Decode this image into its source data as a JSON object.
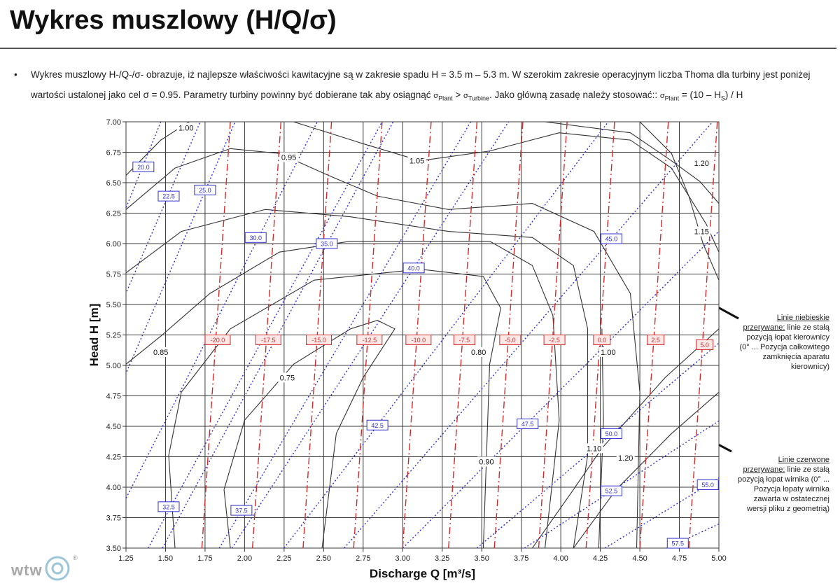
{
  "header": {
    "title": "Wykres muszlowy (H/Q/σ)",
    "bullet": [
      {
        "text": "Wykres muszlowy H-/Q-/σ- obrazuje, iż najlepsze właściwości kawitacyjne są w zakresie spadu H = 3.5 m – 5.3 m. W szerokim zakresie operacyjnym liczba Thoma dla turbiny jest poniżej wartości ustalonej jako cel σ = 0.95. Parametry turbiny powinny być dobierane tak aby osiągnąć "
      },
      {
        "text": "σ",
        "small": true
      },
      {
        "text": "Plant",
        "sub": true
      },
      {
        "text": " > "
      },
      {
        "text": "σ",
        "small": true
      },
      {
        "text": "Turbine",
        "sub": true
      },
      {
        "text": ". Jako główną zasadę należy stosować:: "
      },
      {
        "text": "σ",
        "small": true
      },
      {
        "text": "Plant",
        "sub": true
      },
      {
        "text": " = (10 – H"
      },
      {
        "text": "S",
        "sub": true
      },
      {
        "text": ") / H"
      }
    ]
  },
  "notes": [
    {
      "heading": "Linie niebieskie przerywane:",
      "text": " linie ze stałą pozycją łopat kierownicy (0° ... Pozycja całkowitego zamknięcia aparatu kierownicy)"
    },
    {
      "heading": "Linie czerwone przerywane:",
      "text": " linie ze stałą pozycją łopat wirnika (0° ... Pozycja łopaty wirnika zawarta w ostatecznej wersji pliku z geometrią)"
    }
  ],
  "logo": {
    "text": "wtw",
    "mark": "®"
  },
  "chart_data": {
    "type": "contour",
    "xlabel": "Discharge Q [m³/s]",
    "ylabel": "Head H [m]",
    "xlim": [
      1.25,
      5.0
    ],
    "ylim": [
      3.5,
      7.0
    ],
    "grid": true,
    "xticks": [
      1.25,
      {
        "value": 1.5,
        "label": "1.50"
      },
      1.75,
      {
        "value": 2.0,
        "label": "2.00"
      },
      2.25,
      {
        "value": 2.5,
        "label": "2.50"
      },
      2.75,
      {
        "value": 3.0,
        "label": "3.00"
      },
      3.25,
      {
        "value": 3.5,
        "label": "3.50"
      },
      3.75,
      {
        "value": 4.0,
        "label": "4.00"
      },
      4.25,
      {
        "value": 4.5,
        "label": "4.50"
      },
      4.75,
      {
        "value": 5.0,
        "label": "5.00"
      }
    ],
    "yticks": [
      {
        "value": 3.5,
        "label": "3.50"
      },
      3.75,
      {
        "value": 4.0,
        "label": "4.00"
      },
      4.25,
      {
        "value": 4.5,
        "label": "4.50"
      },
      4.75,
      {
        "value": 5.0,
        "label": "5.00"
      },
      5.25,
      {
        "value": 5.5,
        "label": "5.50"
      },
      5.75,
      {
        "value": 6.0,
        "label": "6.00"
      },
      6.25,
      {
        "value": 6.5,
        "label": "6.50"
      },
      6.75,
      {
        "value": 7.0,
        "label": "7.00"
      }
    ],
    "series": [
      {
        "name": "0.95",
        "color": "#333333",
        "x": [
          1.25,
          1.56,
          1.91,
          2.22,
          2.53,
          2.84,
          3.29,
          3.82,
          4.21,
          4.44,
          4.5,
          4.48
        ],
        "values": [
          6.28,
          6.62,
          6.78,
          6.74,
          6.56,
          6.39,
          6.28,
          6.33,
          6.1,
          5.59,
          4.78,
          3.5
        ],
        "label_x": 2.28,
        "label_y": 6.71
      },
      {
        "name": "1.00",
        "color": "#333333",
        "x": [
          1.25,
          1.47,
          1.65
        ],
        "values": [
          6.56,
          6.85,
          7.0
        ],
        "label_x": 1.63,
        "label_y": 6.95
      },
      {
        "name": "1.00",
        "color": "#333333",
        "x": [
          4.26,
          4.27,
          4.24
        ],
        "values": [
          5.3,
          4.55,
          3.5
        ],
        "label_x": 4.3,
        "label_y": 5.11
      },
      {
        "name": "1.05",
        "color": "#333333",
        "x": [
          2.31,
          2.75,
          3.11,
          3.55,
          3.99,
          4.44,
          4.7,
          4.92,
          5.0
        ],
        "values": [
          7.0,
          6.82,
          6.68,
          6.76,
          6.91,
          6.85,
          6.62,
          6.16,
          5.93
        ],
        "label_x": 3.09,
        "label_y": 6.68
      },
      {
        "name": "1.20",
        "color": "#333333",
        "x": [
          3.9,
          4.44,
          4.7,
          4.88,
          5.0
        ],
        "values": [
          7.0,
          6.91,
          6.68,
          6.51,
          6.33
        ],
        "label_x": 4.89,
        "label_y": 6.66
      },
      {
        "name": "1.15",
        "color": "#333333",
        "x": [
          4.5,
          4.7,
          4.81,
          4.9,
          5.0
        ],
        "values": [
          7.0,
          6.74,
          6.39,
          6.0,
          5.7
        ],
        "label_x": 4.89,
        "label_y": 6.1
      },
      {
        "name": "0.90",
        "color": "#333333",
        "x": [
          1.25,
          1.6,
          2.13,
          2.67,
          3.29,
          3.82,
          4.08,
          4.17,
          4.17,
          4.08
        ],
        "values": [
          5.76,
          6.1,
          6.28,
          6.22,
          6.1,
          6.05,
          5.82,
          5.3,
          4.26,
          3.5
        ],
        "label_x": 3.53,
        "label_y": 4.21
      },
      {
        "name": "0.85",
        "color": "#333333",
        "x": [
          1.25,
          1.47,
          1.78,
          2.22,
          2.67,
          3.55,
          3.82,
          3.95,
          3.99,
          3.9
        ],
        "values": [
          5.01,
          5.24,
          5.59,
          5.93,
          6.02,
          6.02,
          5.82,
          5.41,
          4.55,
          3.5
        ],
        "label_x": 1.47,
        "label_y": 5.11
      },
      {
        "name": "0.80",
        "color": "#333333",
        "x": [
          1.56,
          1.52,
          1.6,
          1.91,
          2.44,
          3.11,
          3.51,
          3.62,
          3.55,
          3.51
        ],
        "values": [
          3.5,
          4.26,
          4.78,
          5.3,
          5.7,
          5.79,
          5.73,
          5.47,
          5.01,
          3.5
        ],
        "label_x": 3.48,
        "label_y": 5.11
      },
      {
        "name": "0.75",
        "color": "#333333",
        "x": [
          1.91,
          1.87,
          2.0,
          2.31,
          2.67,
          2.84,
          2.95,
          2.75,
          2.58,
          2.49
        ],
        "values": [
          3.5,
          3.98,
          4.55,
          5.01,
          5.3,
          5.37,
          5.3,
          4.9,
          4.44,
          3.5
        ],
        "label_x": 2.27,
        "label_y": 4.9
      },
      {
        "name": "1.10",
        "color": "#333333",
        "x": [
          3.82,
          4.08,
          4.26,
          4.66,
          5.0
        ],
        "values": [
          3.5,
          3.98,
          4.32,
          4.9,
          5.3
        ],
        "label_x": 4.21,
        "label_y": 4.32
      },
      {
        "name": "1.20",
        "color": "#333333",
        "x": [
          4.08,
          4.35,
          4.7,
          5.0
        ],
        "values": [
          3.5,
          3.98,
          4.44,
          4.78
        ],
        "label_x": 4.41,
        "label_y": 4.24
      },
      {
        "name": "20.0",
        "color": "#2f2fcf",
        "dash": "dotted",
        "boxed": true,
        "x": [
          0.38,
          1.47
        ],
        "values": [
          3.5,
          7.0
        ],
        "label_x": 1.36,
        "label_y": 6.63
      },
      {
        "name": "22.5",
        "color": "#2f2fcf",
        "dash": "dotted",
        "boxed": true,
        "x": [
          0.55,
          1.72
        ],
        "values": [
          3.5,
          7.0
        ],
        "label_x": 1.52,
        "label_y": 6.39
      },
      {
        "name": "25.0",
        "color": "#2f2fcf",
        "dash": "dotted",
        "boxed": true,
        "x": [
          0.77,
          1.94
        ],
        "values": [
          3.5,
          7.0
        ],
        "label_x": 1.75,
        "label_y": 6.44
      },
      {
        "name": "30.0",
        "color": "#2f2fcf",
        "dash": "dotted",
        "boxed": true,
        "x": [
          1.09,
          2.46
        ],
        "values": [
          3.5,
          7.0
        ],
        "label_x": 2.07,
        "label_y": 6.05
      },
      {
        "name": "32.5",
        "color": "#2f2fcf",
        "dash": "dotted",
        "boxed": true,
        "x": [
          1.39,
          2.87
        ],
        "values": [
          3.5,
          7.0
        ],
        "label_x": 1.52,
        "label_y": 3.84
      },
      {
        "name": "35.0",
        "color": "#2f2fcf",
        "dash": "dotted",
        "boxed": true,
        "x": [
          1.48,
          2.94
        ],
        "values": [
          3.5,
          7.0
        ],
        "label_x": 2.52,
        "label_y": 6.0
      },
      {
        "name": "37.5",
        "color": "#2f2fcf",
        "dash": "dotted",
        "boxed": true,
        "x": [
          1.84,
          3.43
        ],
        "values": [
          3.5,
          7.0
        ],
        "label_x": 1.98,
        "label_y": 3.81
      },
      {
        "name": "40.0",
        "color": "#2f2fcf",
        "dash": "dotted",
        "boxed": true,
        "x": [
          1.92,
          3.67
        ],
        "values": [
          3.5,
          7.0
        ],
        "label_x": 3.07,
        "label_y": 5.8
      },
      {
        "name": "42.5",
        "color": "#2f2fcf",
        "dash": "dotted",
        "boxed": true,
        "x": [
          2.25,
          4.3
        ],
        "values": [
          3.5,
          7.0
        ],
        "label_x": 2.84,
        "label_y": 4.51
      },
      {
        "name": "45.0",
        "color": "#2f2fcf",
        "dash": "dotted",
        "boxed": true,
        "x": [
          2.63,
          4.96
        ],
        "values": [
          3.5,
          7.0
        ],
        "label_x": 4.32,
        "label_y": 6.04
      },
      {
        "name": "47.5",
        "color": "#2f2fcf",
        "dash": "dotted",
        "boxed": true,
        "x": [
          3.0,
          5.69
        ],
        "values": [
          3.5,
          7.0
        ],
        "label_x": 3.79,
        "label_y": 4.52
      },
      {
        "name": "50.0",
        "color": "#2f2fcf",
        "dash": "dotted",
        "boxed": true,
        "x": [
          3.47,
          6.65
        ],
        "values": [
          3.5,
          7.0
        ],
        "label_x": 4.32,
        "label_y": 4.44
      },
      {
        "name": "52.5",
        "color": "#2f2fcf",
        "dash": "dotted",
        "boxed": true,
        "x": [
          3.77,
          7.89
        ],
        "values": [
          3.5,
          7.0
        ],
        "label_x": 4.32,
        "label_y": 3.97
      },
      {
        "name": "55.0",
        "color": "#2f2fcf",
        "dash": "dotted",
        "boxed": true,
        "x": [
          4.28,
          8.65
        ],
        "values": [
          3.5,
          7.0
        ],
        "label_x": 4.93,
        "label_y": 4.02
      },
      {
        "name": "57.5",
        "color": "#2f2fcf",
        "dash": "dotted",
        "boxed": true,
        "x": [
          4.67,
          10.5
        ],
        "values": [
          3.5,
          7.0
        ],
        "label_x": 4.74,
        "label_y": 3.54
      },
      {
        "name": "-20.0",
        "color": "#d42a2a",
        "dash": "dashed",
        "boxed": true,
        "x": [
          1.73,
          1.91
        ],
        "values": [
          3.5,
          7.0
        ],
        "label_x": 1.83,
        "label_y": 5.21
      },
      {
        "name": "-17.5",
        "color": "#d42a2a",
        "dash": "dashed",
        "boxed": true,
        "x": [
          2.05,
          2.23
        ],
        "values": [
          3.5,
          7.0
        ],
        "label_x": 2.15,
        "label_y": 5.21
      },
      {
        "name": "-15.0",
        "color": "#d42a2a",
        "dash": "dashed",
        "boxed": true,
        "x": [
          2.37,
          2.55
        ],
        "values": [
          3.5,
          7.0
        ],
        "label_x": 2.47,
        "label_y": 5.21
      },
      {
        "name": "-12.5",
        "color": "#d42a2a",
        "dash": "dashed",
        "boxed": true,
        "x": [
          2.69,
          2.87
        ],
        "values": [
          3.5,
          7.0
        ],
        "label_x": 2.79,
        "label_y": 5.21
      },
      {
        "name": "-10.0",
        "color": "#d42a2a",
        "dash": "dashed",
        "boxed": true,
        "x": [
          3.0,
          3.18
        ],
        "values": [
          3.5,
          7.0
        ],
        "label_x": 3.1,
        "label_y": 5.21
      },
      {
        "name": "-7.5",
        "color": "#d42a2a",
        "dash": "dashed",
        "boxed": true,
        "x": [
          3.29,
          3.47
        ],
        "values": [
          3.5,
          7.0
        ],
        "label_x": 3.39,
        "label_y": 5.21
      },
      {
        "name": "-5.0",
        "color": "#d42a2a",
        "dash": "dashed",
        "boxed": true,
        "x": [
          3.58,
          3.76
        ],
        "values": [
          3.5,
          7.0
        ],
        "label_x": 3.68,
        "label_y": 5.21
      },
      {
        "name": "-2.5",
        "color": "#d42a2a",
        "dash": "dashed",
        "boxed": true,
        "x": [
          3.86,
          4.04
        ],
        "values": [
          3.5,
          7.0
        ],
        "label_x": 3.96,
        "label_y": 5.21
      },
      {
        "name": "0.0",
        "color": "#d42a2a",
        "dash": "dashed",
        "boxed": true,
        "x": [
          4.16,
          4.34
        ],
        "values": [
          3.5,
          7.0
        ],
        "label_x": 4.26,
        "label_y": 5.21
      },
      {
        "name": "2.5",
        "color": "#d42a2a",
        "dash": "dashed",
        "boxed": true,
        "x": [
          4.5,
          4.68
        ],
        "values": [
          3.5,
          7.0
        ],
        "label_x": 4.6,
        "label_y": 5.21
      },
      {
        "name": "5.0",
        "color": "#d42a2a",
        "dash": "dashed",
        "boxed": true,
        "x": [
          4.81,
          4.99
        ],
        "values": [
          3.5,
          7.0
        ],
        "label_x": 4.91,
        "label_y": 5.17
      }
    ]
  }
}
